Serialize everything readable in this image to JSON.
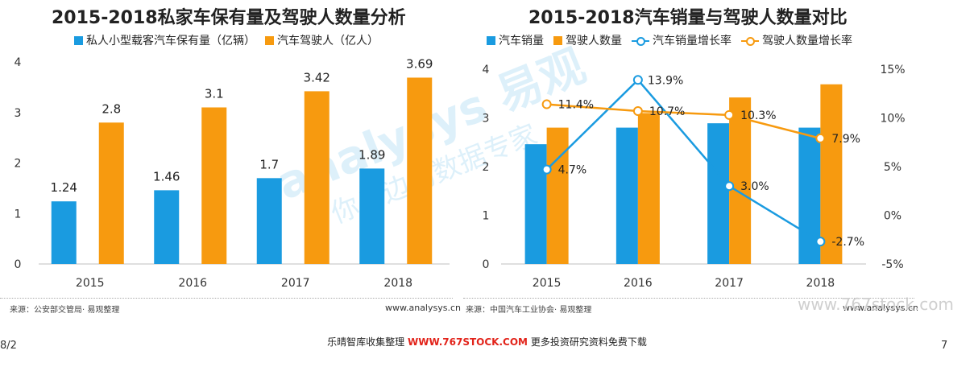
{
  "chart_data": [
    {
      "type": "bar",
      "title": "2015-2018私家车保有量及驾驶人数量分析",
      "categories": [
        "2015",
        "2016",
        "2017",
        "2018"
      ],
      "series": [
        {
          "name": "私人小型载客汽车保有量（亿辆）",
          "values": [
            1.24,
            1.46,
            1.7,
            1.89
          ],
          "labels": [
            "1.24",
            "1.46",
            "1.7",
            "1.89"
          ],
          "color": "#1a9be0"
        },
        {
          "name": "汽车驾驶人（亿人）",
          "values": [
            2.8,
            3.1,
            3.42,
            3.69
          ],
          "labels": [
            "2.8",
            "3.1",
            "3.42",
            "3.69"
          ],
          "color": "#f79a0f"
        }
      ],
      "ylim": [
        0,
        4
      ],
      "yticks": [
        "0",
        "1",
        "2",
        "3",
        "4"
      ],
      "grid": false,
      "legend": "top",
      "source": "来源：公安部交管局· 易观整理",
      "site": "www.analysys.cn"
    },
    {
      "type": "bar+line",
      "title": "2015-2018汽车销量与驾驶人数量对比",
      "categories": [
        "2015",
        "2016",
        "2017",
        "2018"
      ],
      "bars": [
        {
          "name": "汽车销量",
          "values": [
            2.46,
            2.8,
            2.89,
            2.8
          ],
          "color": "#1a9be0"
        },
        {
          "name": "驾驶人数量",
          "values": [
            2.8,
            3.1,
            3.42,
            3.69
          ],
          "color": "#f79a0f"
        }
      ],
      "lines": [
        {
          "name": "汽车销量增长率",
          "values": [
            4.7,
            13.9,
            3.0,
            -2.7
          ],
          "labels": [
            "4.7%",
            "13.9%",
            "3.0%",
            "-2.7%"
          ],
          "color": "#1a9be0"
        },
        {
          "name": "驾驶人数量增长率",
          "values": [
            11.4,
            10.7,
            10.3,
            7.9
          ],
          "labels": [
            "11.4%",
            "10.7%",
            "10.3%",
            "7.9%"
          ],
          "color": "#f79a0f"
        }
      ],
      "ylim": [
        0,
        4
      ],
      "yticks": [
        "0",
        "1",
        "2",
        "3",
        "4"
      ],
      "y2lim": [
        -5,
        15
      ],
      "y2ticks": [
        "-5%",
        "0%",
        "5%",
        "10%",
        "15%"
      ],
      "grid": false,
      "legend": "top",
      "source": "来源：中国汽车工业协会· 易观整理",
      "site": "www.analysys.cn"
    }
  ],
  "footer": {
    "prefix": "乐晴智库收集整理",
    "url": "WWW.767STOCK.COM",
    "suffix": "更多投资研究资料免费下载"
  },
  "page_left": "8/2",
  "page_right": "7",
  "watermark": {
    "brand": "analysys 易观",
    "slogan": "你身边的数据专家",
    "stock": "www.767stock.com"
  }
}
